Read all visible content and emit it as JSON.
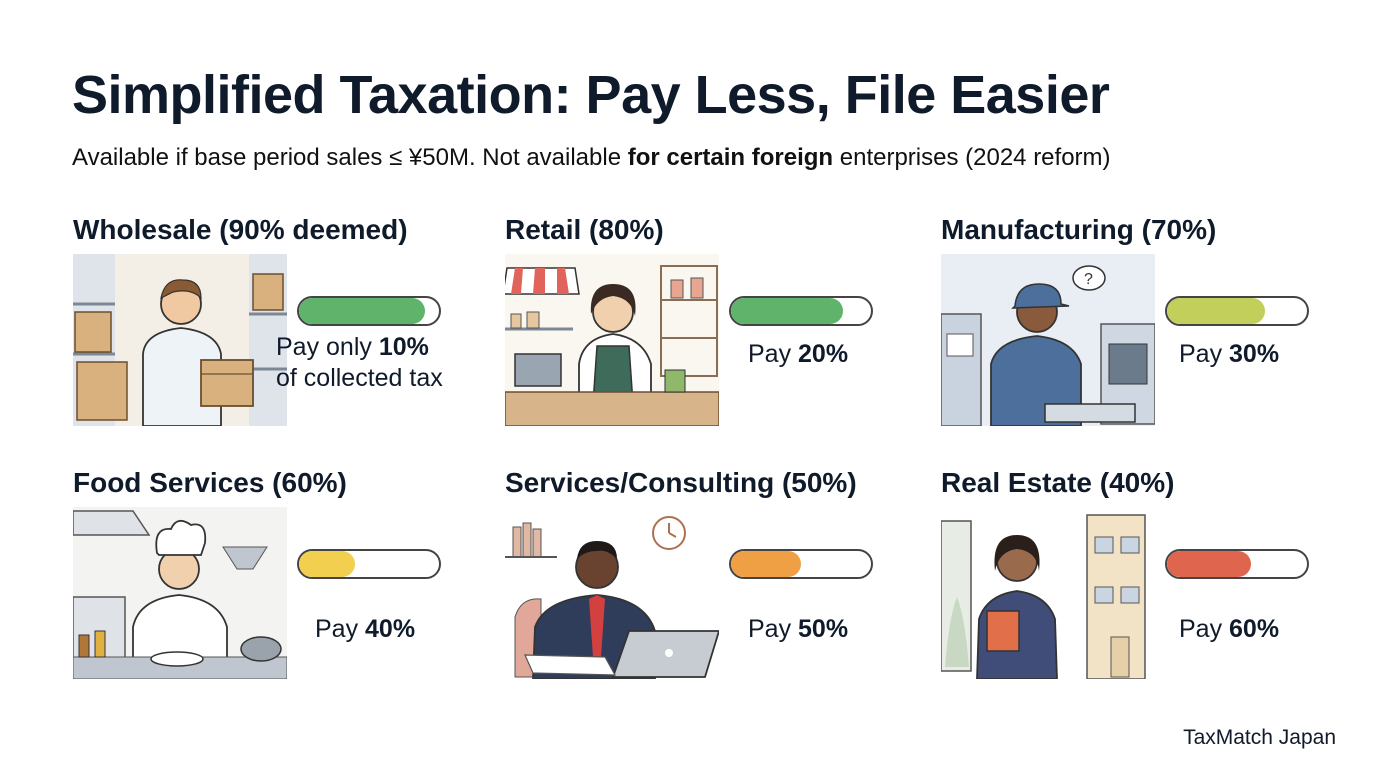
{
  "header": {
    "title": "Simplified Taxation: Pay Less, File Easier",
    "subtitle_part1": "Available if base period sales ≤ ¥50M. Not available ",
    "subtitle_bold": "for certain foreign",
    "subtitle_part2": " enterprises (2024 reform)"
  },
  "cards": [
    {
      "title": "Wholesale (90% deemed)",
      "pay_prefix": "Pay only ",
      "pay_value": "10%",
      "pay_suffix": "of collected tax",
      "payment_fraction": 0.1,
      "bar_color": "#5fb36b",
      "bar_fill_fraction": 0.9,
      "icon": "wholesale-worker-illustration"
    },
    {
      "title": "Retail (80%)",
      "pay_prefix": "Pay ",
      "pay_value": "20%",
      "payment_fraction": 0.2,
      "bar_color": "#5fb36b",
      "bar_fill_fraction": 0.8,
      "icon": "retail-cashier-illustration"
    },
    {
      "title": "Manufacturing (70%)",
      "pay_prefix": "Pay ",
      "pay_value": "30%",
      "payment_fraction": 0.3,
      "bar_color": "#c3cf5b",
      "bar_fill_fraction": 0.7,
      "icon": "factory-worker-illustration"
    },
    {
      "title": "Food Services (60%)",
      "pay_prefix": "Pay ",
      "pay_value": "40%",
      "payment_fraction": 0.4,
      "bar_color": "#f3cf4f",
      "bar_fill_fraction": 0.4,
      "icon": "chef-illustration"
    },
    {
      "title": "Services/Consulting (50%)",
      "pay_prefix": "Pay ",
      "pay_value": "50%",
      "payment_fraction": 0.5,
      "bar_color": "#f0a044",
      "bar_fill_fraction": 0.5,
      "icon": "consultant-illustration"
    },
    {
      "title": "Real Estate (40%)",
      "pay_prefix": "Pay ",
      "pay_value": "60%",
      "payment_fraction": 0.6,
      "bar_color": "#e0654e",
      "bar_fill_fraction": 0.6,
      "icon": "real-estate-agent-illustration"
    }
  ],
  "footer": {
    "brand": "TaxMatch Japan"
  }
}
